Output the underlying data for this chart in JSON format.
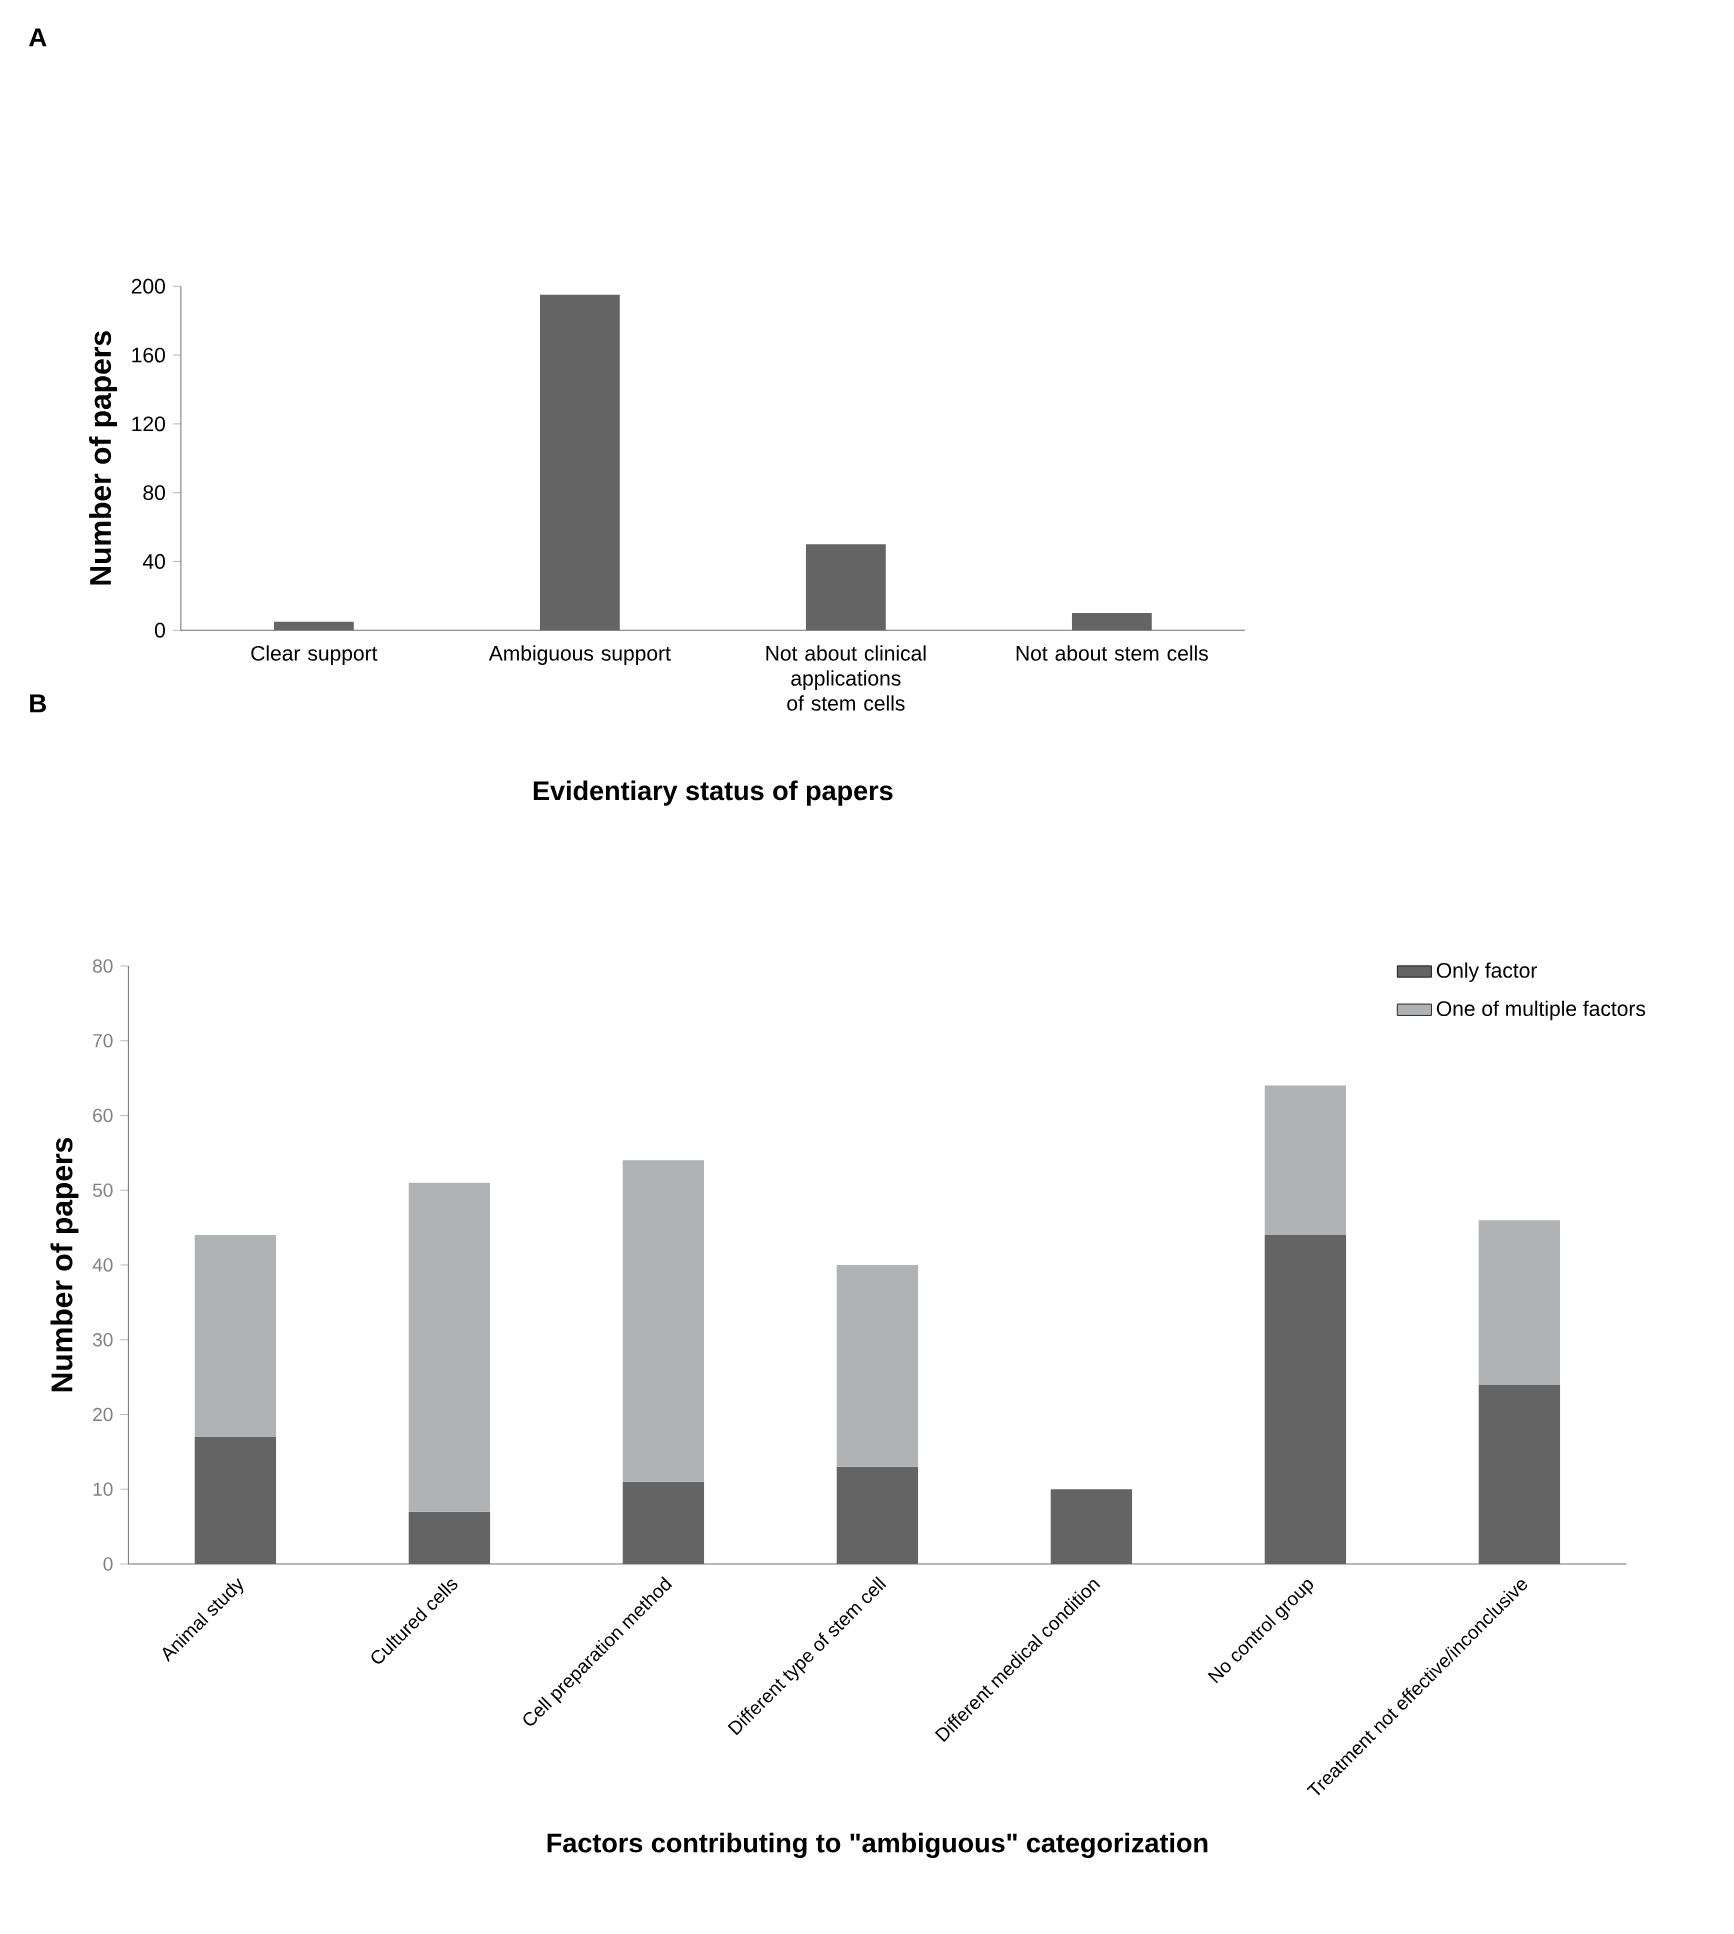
{
  "chart_data": [
    {
      "type": "bar",
      "annotations": [
        "A"
      ],
      "xlabel": "Evidentiary status of papers",
      "ylabel": "Number of papers",
      "categories": [
        "Clear support",
        "Ambiguous support",
        "Not about clinical applications of stem cells",
        "Not about stem cells"
      ],
      "values": [
        5,
        195,
        50,
        10
      ],
      "color": "#646464",
      "ylim": [
        0,
        200
      ],
      "yticks": [
        0,
        40,
        80,
        120,
        160,
        200
      ],
      "grid": false,
      "legend": false
    },
    {
      "type": "bar",
      "annotations": [
        "B"
      ],
      "xlabel": "Factors contributing to \"ambiguous\" categorization",
      "ylabel": "Number of papers",
      "categories": [
        "Animal study",
        "Cultured cells",
        "Cell preparation method",
        "Different type of stem cell",
        "Different medical condition",
        "No control group",
        "Treatment not effective/inconclusive"
      ],
      "stacked": true,
      "series": [
        {
          "name": "Only factor",
          "color": "#646464",
          "values": [
            17,
            7,
            11,
            13,
            10,
            44,
            24
          ]
        },
        {
          "name": "One of multiple factors",
          "color": "#b1b2b4",
          "values": [
            27,
            44,
            43,
            27,
            null,
            20,
            22
          ]
        }
      ],
      "ylim": [
        0,
        80
      ],
      "yticks": [
        0,
        10,
        20,
        30,
        40,
        50,
        60,
        70,
        80
      ],
      "grid": false,
      "legend": "top right"
    }
  ]
}
